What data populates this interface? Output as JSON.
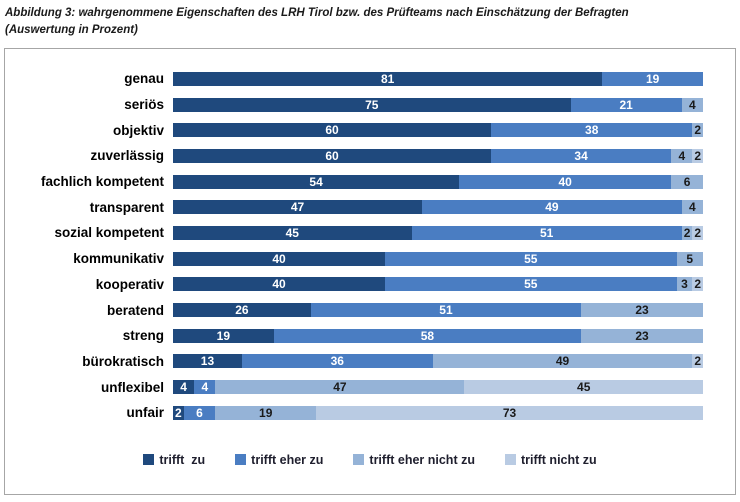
{
  "figure": {
    "title_line1": "Abbildung 3: wahrgenommene Eigenschaften des LRH Tirol bzw. des Prüfteams nach Einschätzung der Befragten",
    "title_line2": "(Auswertung in Prozent)"
  },
  "chart_data": {
    "type": "bar",
    "variant": "horizontal-stacked",
    "title": "Abbildung 3: wahrgenommene Eigenschaften des LRH Tirol bzw. des Prüfteams nach Einschätzung der Befragten (Auswertung in Prozent)",
    "xlabel": "",
    "ylabel": "",
    "xlim": [
      0,
      100
    ],
    "unit": "percent",
    "grid": false,
    "legend_position": "bottom",
    "categories": [
      "genau",
      "seriös",
      "objektiv",
      "zuverlässig",
      "fachlich kompetent",
      "transparent",
      "sozial kompetent",
      "kommunikativ",
      "kooperativ",
      "beratend",
      "streng",
      "bürokratisch",
      "unflexibel",
      "unfair"
    ],
    "series": [
      {
        "name": "trifft  zu",
        "color": "#1F497D",
        "label_color": "#ffffff",
        "values": [
          81,
          75,
          60,
          60,
          54,
          47,
          45,
          40,
          40,
          26,
          19,
          13,
          4,
          2
        ]
      },
      {
        "name": "trifft eher zu",
        "color": "#4A7DC2",
        "label_color": "#ffffff",
        "values": [
          19,
          21,
          38,
          34,
          40,
          49,
          51,
          55,
          55,
          51,
          58,
          36,
          4,
          6
        ]
      },
      {
        "name": "trifft eher nicht zu",
        "color": "#95B3D7",
        "label_color": "#1a1a1a",
        "values": [
          0,
          4,
          2,
          4,
          6,
          4,
          2,
          5,
          3,
          23,
          23,
          49,
          47,
          19
        ]
      },
      {
        "name": "trifft nicht zu",
        "color": "#B9CBE3",
        "label_color": "#1a1a1a",
        "values": [
          0,
          0,
          0,
          2,
          0,
          0,
          2,
          0,
          2,
          0,
          0,
          2,
          45,
          73
        ]
      }
    ]
  }
}
